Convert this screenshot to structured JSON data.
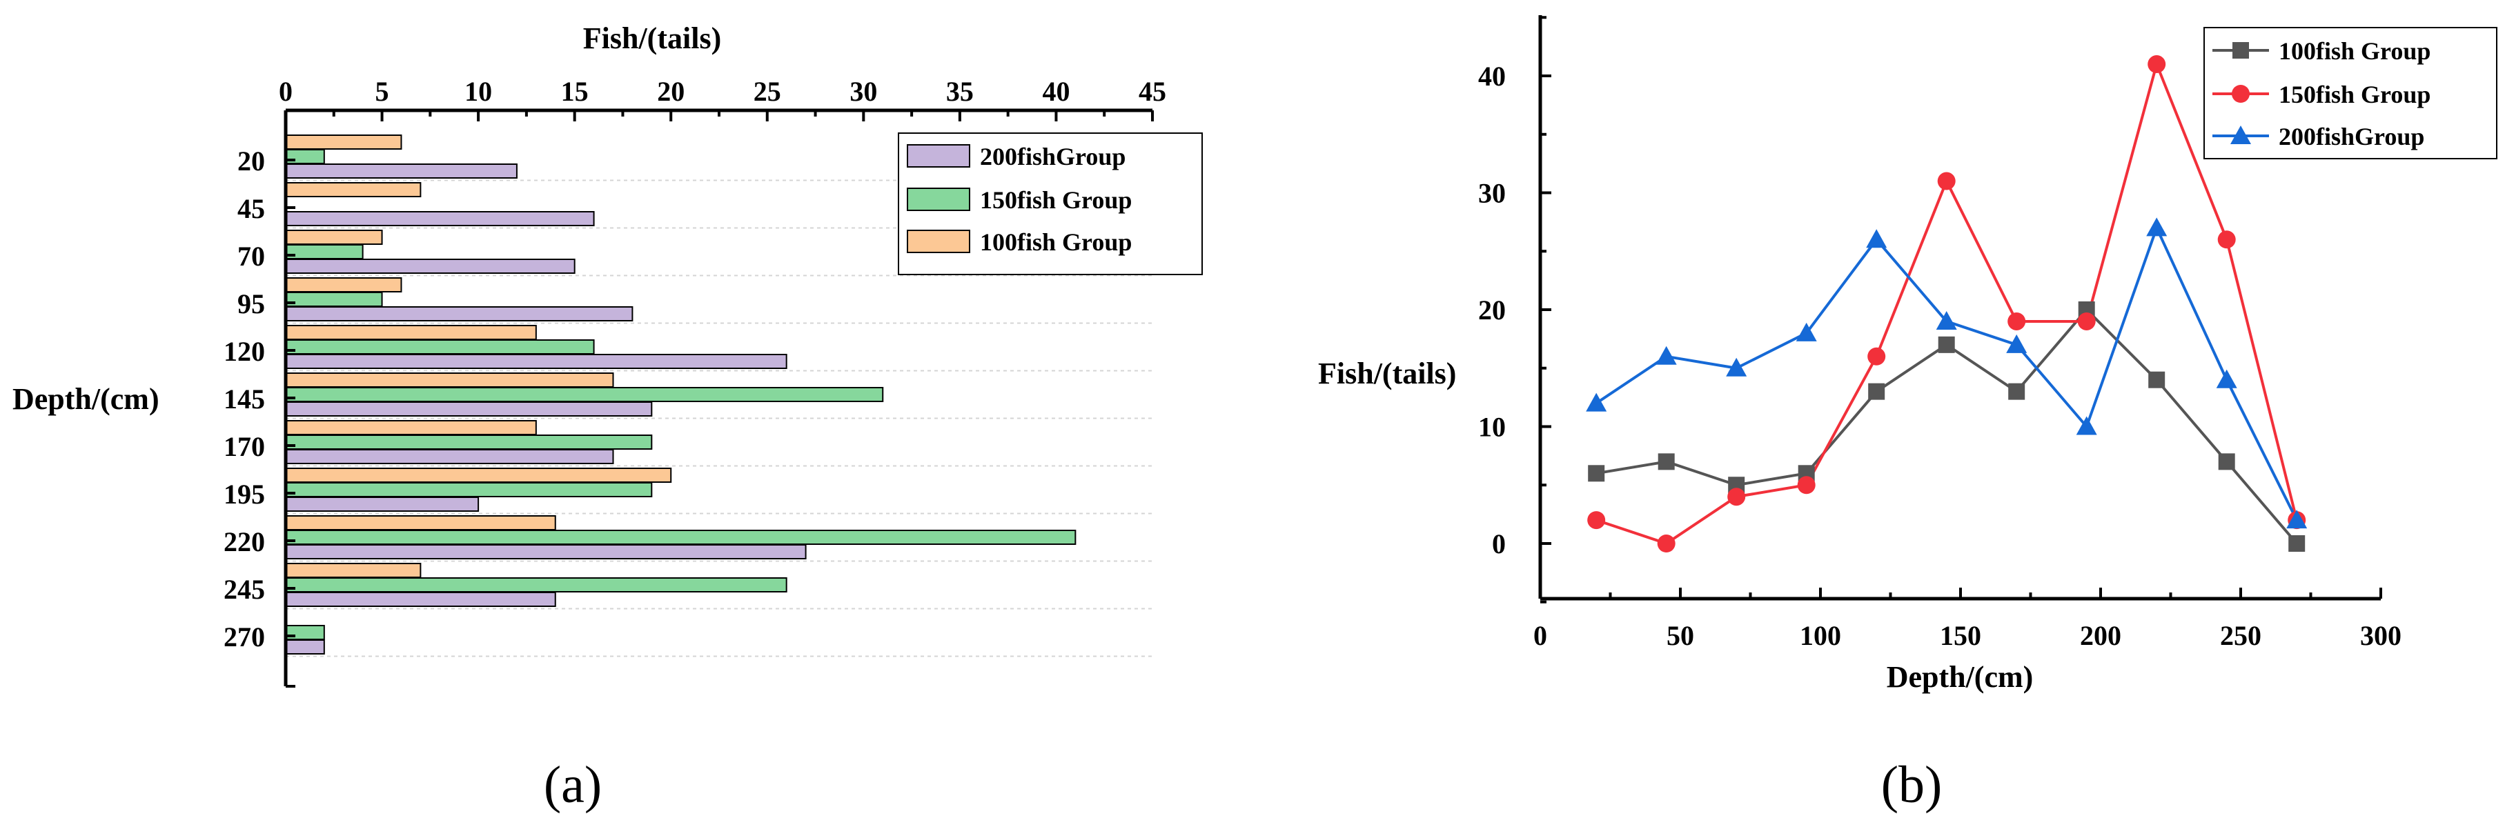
{
  "colors": {
    "s200": "#c5b4db",
    "s150": "#86d79c",
    "s100": "#fcc895",
    "line100": "#555555",
    "line150": "#f2303a",
    "line200": "#1569d6"
  },
  "chart_data": [
    {
      "type": "bar",
      "orientation": "horizontal",
      "caption": "(a)",
      "xlabel": "Fish/(tails)",
      "ylabel": "Depth/(cm)",
      "xlim": [
        0,
        45
      ],
      "xticks": [
        "0",
        "5",
        "10",
        "15",
        "20",
        "25",
        "30",
        "35",
        "40",
        "45"
      ],
      "categories": [
        "20",
        "45",
        "70",
        "95",
        "120",
        "145",
        "170",
        "195",
        "220",
        "245",
        "270"
      ],
      "legend_position": "top-right",
      "series": [
        {
          "name": "200fishGroup",
          "values": [
            12,
            16,
            15,
            18,
            26,
            19,
            17,
            10,
            27,
            14,
            2
          ]
        },
        {
          "name": "150fish Group",
          "values": [
            2,
            0,
            4,
            5,
            16,
            31,
            19,
            19,
            41,
            26,
            2
          ]
        },
        {
          "name": "100fish Group",
          "values": [
            6,
            7,
            5,
            6,
            13,
            17,
            13,
            20,
            14,
            7,
            0
          ]
        }
      ]
    },
    {
      "type": "line",
      "caption": "(b)",
      "xlabel": "Depth/(cm)",
      "ylabel": "Fish/(tails)",
      "xlim": [
        0,
        300
      ],
      "ylim": [
        -5,
        45
      ],
      "xticks": [
        "0",
        "50",
        "100",
        "150",
        "200",
        "250",
        "300"
      ],
      "yticks": [
        "0",
        "10",
        "20",
        "30",
        "40"
      ],
      "x": [
        20,
        45,
        70,
        95,
        120,
        145,
        170,
        195,
        220,
        245,
        270
      ],
      "legend_position": "top-right",
      "series": [
        {
          "name": "100fish Group",
          "marker": "square",
          "values": [
            6,
            7,
            5,
            6,
            13,
            17,
            13,
            20,
            14,
            7,
            0
          ]
        },
        {
          "name": "150fish Group",
          "marker": "circle",
          "values": [
            2,
            0,
            4,
            5,
            16,
            31,
            19,
            19,
            41,
            26,
            2
          ]
        },
        {
          "name": "200fishGroup",
          "marker": "triangle",
          "values": [
            12,
            16,
            15,
            18,
            26,
            19,
            17,
            10,
            27,
            14,
            2
          ]
        }
      ]
    }
  ]
}
